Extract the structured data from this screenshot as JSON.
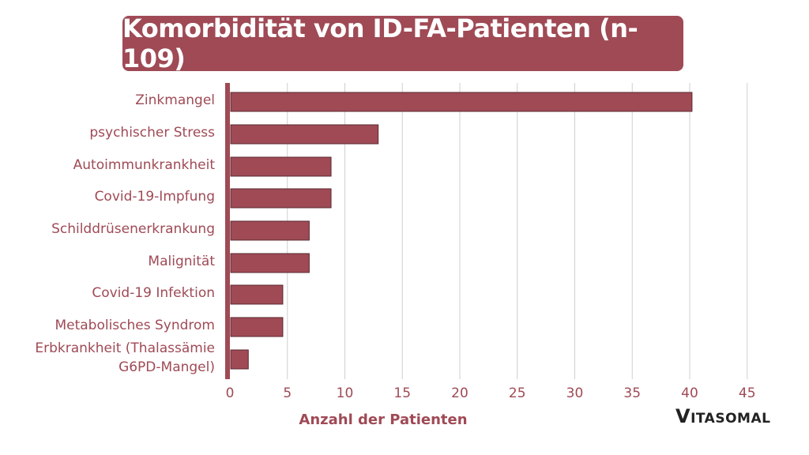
{
  "title": "Komorbidität von ID-FA-Patienten (n-109)",
  "logo": {
    "initial": "V",
    "rest": "ITASOMAL"
  },
  "colors": {
    "accent": "#9f4a55",
    "bar": "#9f4a55",
    "bar_border": "#5a2a30",
    "grid": "#cfcfcf",
    "text": "#9f4a55"
  },
  "chart_data": {
    "type": "bar",
    "orientation": "horizontal",
    "title": "Komorbidität von ID-FA-Patienten (n-109)",
    "xlabel": "Anzahl der Patienten",
    "ylabel": "",
    "xlim": [
      0,
      45
    ],
    "xticks": [
      0,
      5,
      10,
      15,
      20,
      25,
      30,
      35,
      40,
      45
    ],
    "grid": true,
    "categories": [
      [
        "Zinkmangel"
      ],
      [
        "psychischer Stress"
      ],
      [
        "Autoimmunkrankheit"
      ],
      [
        "Covid-19-Impfung"
      ],
      [
        "Schilddrüsenerkrankung"
      ],
      [
        "Malignität"
      ],
      [
        "Covid-19 Infektion"
      ],
      [
        "Metabolisches Syndrom"
      ],
      [
        "Erbkrankheit (Thalassämie",
        "G6PD-Mangel)"
      ]
    ],
    "values": [
      40.2,
      12.9,
      8.8,
      8.8,
      6.9,
      6.9,
      4.6,
      4.6,
      1.6
    ]
  }
}
